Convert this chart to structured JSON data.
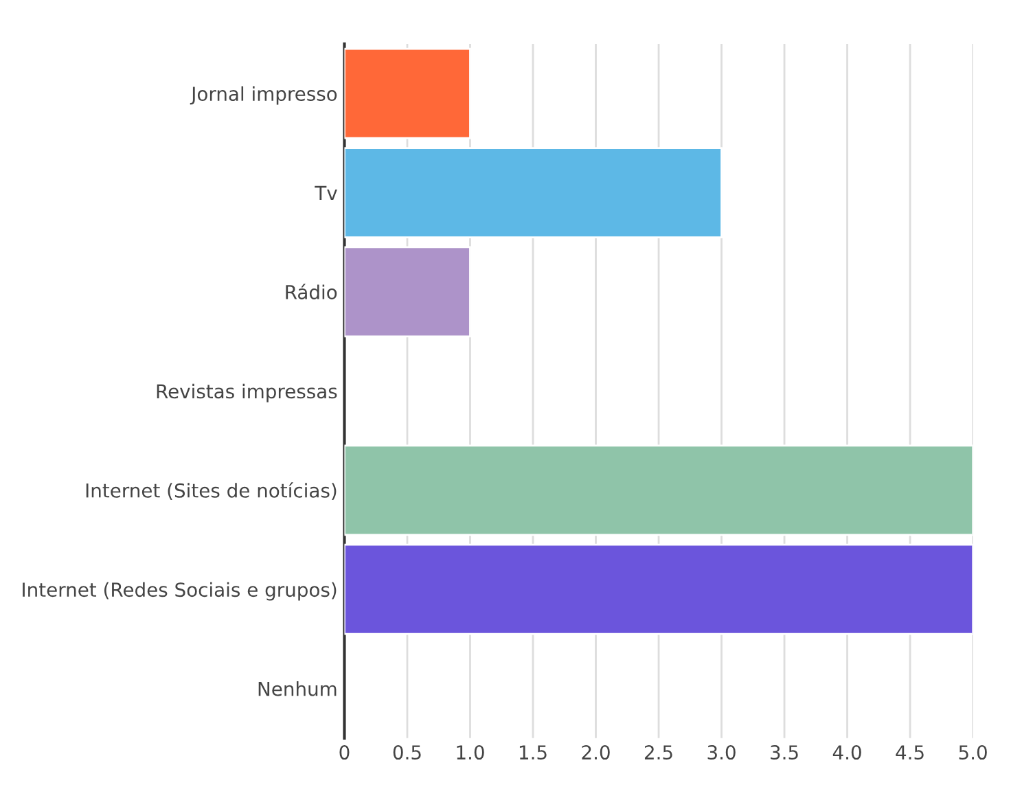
{
  "chart_data": {
    "type": "bar",
    "orientation": "horizontal",
    "categories": [
      "Jornal impresso",
      "Tv",
      "Rádio",
      "Revistas impressas",
      "Internet (Sites de notícias)",
      "Internet (Redes Sociais e grupos)",
      "Nenhum"
    ],
    "values": [
      1,
      3,
      1,
      0,
      5,
      5,
      0
    ],
    "colors": [
      "#ff6838",
      "#5db8e6",
      "#ad93c9",
      null,
      "#8fc4a9",
      "#6b55dc",
      null
    ],
    "xlim": [
      0,
      5
    ],
    "xticks": [
      0,
      0.5,
      {
        "value": 1,
        "label": "1.0"
      },
      1.5,
      {
        "value": 2,
        "label": "2.0"
      },
      2.5,
      {
        "value": 3,
        "label": "3.0"
      },
      3.5,
      {
        "value": 4,
        "label": "4.0"
      },
      4.5,
      {
        "value": 5,
        "label": "5.0"
      }
    ],
    "grid": "x"
  }
}
